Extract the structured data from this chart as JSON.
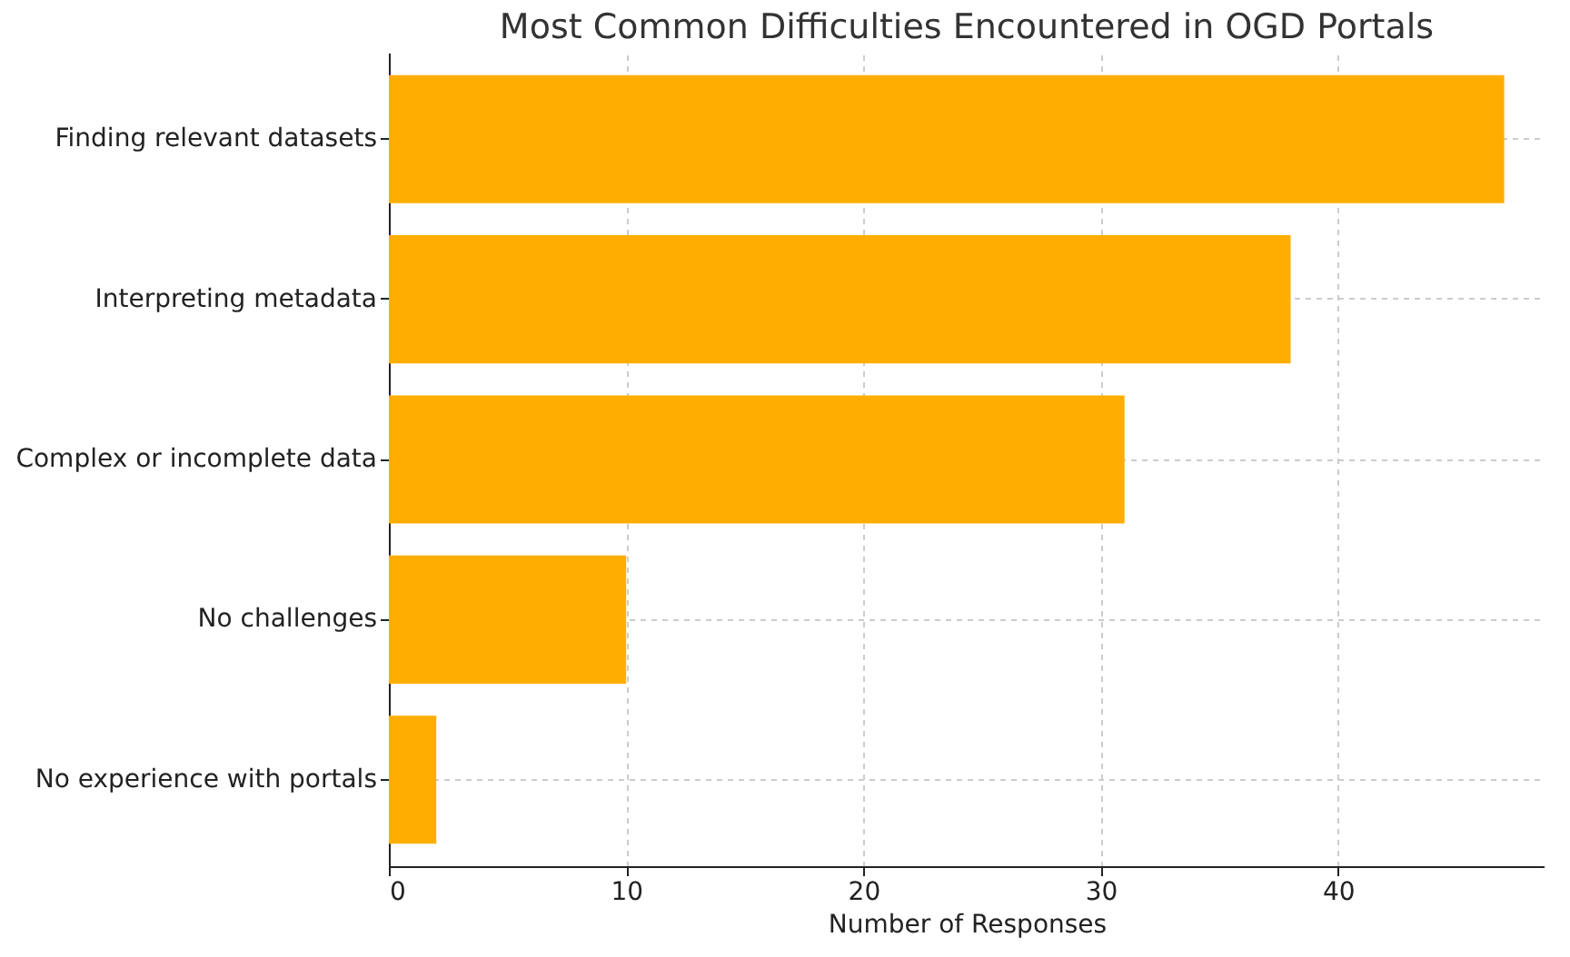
{
  "chart_data": {
    "type": "bar",
    "orientation": "horizontal",
    "title": "Most Common Difficulties Encountered in OGD Portals",
    "xlabel": "Number of Responses",
    "categories": [
      "Finding relevant datasets",
      "Interpreting metadata",
      "Complex or incomplete data",
      "No challenges",
      "No experience with portals"
    ],
    "values": [
      47,
      38,
      31,
      10,
      2
    ],
    "color": "#ffae00",
    "xlim": [
      0,
      48.7
    ],
    "xticks": [
      0,
      10,
      20,
      30,
      40
    ],
    "grid": true
  }
}
